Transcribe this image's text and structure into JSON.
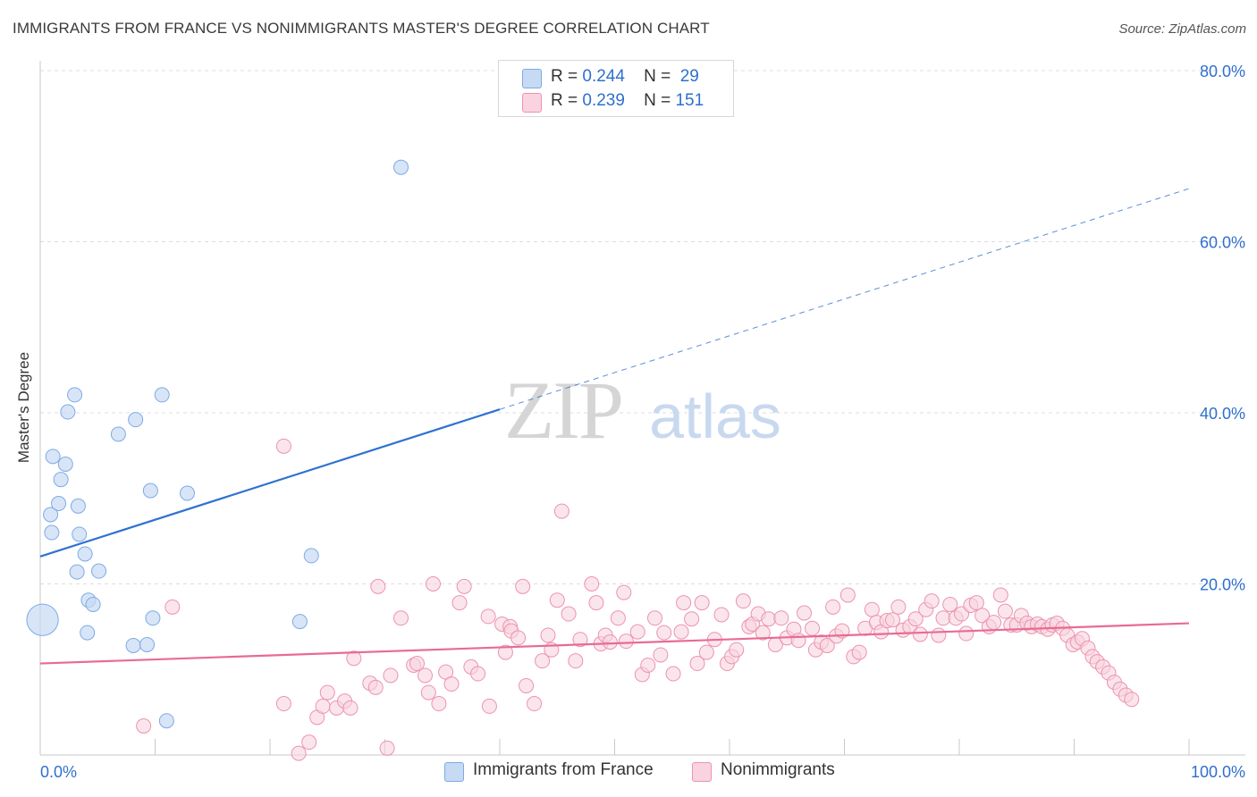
{
  "title": "IMMIGRANTS FROM FRANCE VS NONIMMIGRANTS MASTER'S DEGREE CORRELATION CHART",
  "source": "Source: ZipAtlas.com",
  "watermark": {
    "zip": "ZIP",
    "atlas": "atlas"
  },
  "legend": {
    "rows": [
      {
        "r_label": "R =",
        "r_value": "0.244",
        "n_label": "N =",
        "n_value": "29"
      },
      {
        "r_label": "R =",
        "r_value": "0.239",
        "n_label": "N =",
        "n_value": "151"
      }
    ]
  },
  "bottom_legend": [
    "Immigrants from France",
    "Nonimmigrants"
  ],
  "colors": {
    "blue_fill": "#c6daf4",
    "blue_stroke": "#7eaae6",
    "blue_line": "#2f72d0",
    "pink_fill": "#f9d3df",
    "pink_stroke": "#ec93ae",
    "pink_line": "#e86b94",
    "axis_text": "#2f6fce",
    "grid": "#dddddd"
  },
  "chart_data": {
    "type": "scatter",
    "title": "IMMIGRANTS FROM FRANCE VS NONIMMIGRANTS MASTER'S DEGREE CORRELATION CHART",
    "xlabel": "",
    "ylabel": "Master's Degree",
    "xlim": [
      0,
      100
    ],
    "ylim": [
      0,
      80
    ],
    "x_tick_labels": [
      "0.0%",
      "100.0%"
    ],
    "y_tick_labels": [
      "20.0%",
      "40.0%",
      "60.0%",
      "80.0%"
    ],
    "y_ticks": [
      20,
      40,
      60,
      80
    ],
    "grid": true,
    "series": [
      {
        "name": "Immigrants from France",
        "r": 0.244,
        "n": 29,
        "trend": {
          "x": [
            0,
            40
          ],
          "y": [
            23.2,
            40.4
          ],
          "dashed_to": [
            100,
            66.2
          ]
        },
        "points": [
          [
            0.2,
            15.8,
            2.2
          ],
          [
            1.0,
            26.0,
            1
          ],
          [
            0.9,
            28.1,
            1
          ],
          [
            1.1,
            34.9,
            1
          ],
          [
            2.2,
            34.0,
            1
          ],
          [
            1.8,
            32.2,
            1
          ],
          [
            1.6,
            29.4,
            1
          ],
          [
            2.4,
            40.1,
            1
          ],
          [
            3.0,
            42.1,
            1
          ],
          [
            3.3,
            29.1,
            1
          ],
          [
            3.4,
            25.8,
            1
          ],
          [
            3.2,
            21.4,
            1
          ],
          [
            3.9,
            23.5,
            1
          ],
          [
            5.1,
            21.5,
            1
          ],
          [
            4.2,
            18.1,
            1
          ],
          [
            4.6,
            17.6,
            1
          ],
          [
            4.1,
            14.3,
            1
          ],
          [
            6.8,
            37.5,
            1
          ],
          [
            8.3,
            39.2,
            1
          ],
          [
            9.6,
            30.9,
            1
          ],
          [
            10.6,
            42.1,
            1
          ],
          [
            12.8,
            30.6,
            1
          ],
          [
            8.1,
            12.8,
            1
          ],
          [
            9.3,
            12.9,
            1
          ],
          [
            9.8,
            16.0,
            1
          ],
          [
            11.0,
            4.0,
            1
          ],
          [
            22.6,
            15.6,
            1
          ],
          [
            23.6,
            23.3,
            1
          ],
          [
            31.4,
            68.7,
            1
          ]
        ]
      },
      {
        "name": "Nonimmigrants",
        "r": 0.239,
        "n": 151,
        "trend": {
          "x": [
            0,
            100
          ],
          "y": [
            10.7,
            15.4
          ]
        },
        "points": [
          [
            9.0,
            3.4
          ],
          [
            11.5,
            17.3
          ],
          [
            21.2,
            36.1
          ],
          [
            21.2,
            6.0
          ],
          [
            22.5,
            0.2
          ],
          [
            23.4,
            1.5
          ],
          [
            24.1,
            4.4
          ],
          [
            24.6,
            5.7
          ],
          [
            25.0,
            7.3
          ],
          [
            25.8,
            5.5
          ],
          [
            26.5,
            6.3
          ],
          [
            27.0,
            5.5
          ],
          [
            27.3,
            11.3
          ],
          [
            28.7,
            8.4
          ],
          [
            29.2,
            7.9
          ],
          [
            29.4,
            19.7
          ],
          [
            30.2,
            0.8
          ],
          [
            30.5,
            9.3
          ],
          [
            31.4,
            16.0
          ],
          [
            32.5,
            10.5
          ],
          [
            32.8,
            10.7
          ],
          [
            33.5,
            9.3
          ],
          [
            33.8,
            7.3
          ],
          [
            34.2,
            20.0
          ],
          [
            34.7,
            6.0
          ],
          [
            35.3,
            9.7
          ],
          [
            35.8,
            8.3
          ],
          [
            36.5,
            17.8
          ],
          [
            36.9,
            19.7
          ],
          [
            37.5,
            10.3
          ],
          [
            38.1,
            9.5
          ],
          [
            39.0,
            16.2
          ],
          [
            39.1,
            5.7
          ],
          [
            40.2,
            15.3
          ],
          [
            40.5,
            12.0
          ],
          [
            40.9,
            15.0
          ],
          [
            41.0,
            14.5
          ],
          [
            41.6,
            13.7
          ],
          [
            42.0,
            19.7
          ],
          [
            42.3,
            8.1
          ],
          [
            43.0,
            6.0
          ],
          [
            43.7,
            11.0
          ],
          [
            44.2,
            14.0
          ],
          [
            44.5,
            12.3
          ],
          [
            45.0,
            18.1
          ],
          [
            45.4,
            28.5
          ],
          [
            46.0,
            16.5
          ],
          [
            46.6,
            11.0
          ],
          [
            47.0,
            13.5
          ],
          [
            48.0,
            20.0
          ],
          [
            48.4,
            17.8
          ],
          [
            48.8,
            13.0
          ],
          [
            49.2,
            14.0
          ],
          [
            49.6,
            13.2
          ],
          [
            50.3,
            16.0
          ],
          [
            50.8,
            19.0
          ],
          [
            51.0,
            13.3
          ],
          [
            52.0,
            14.4
          ],
          [
            52.4,
            9.4
          ],
          [
            52.9,
            10.5
          ],
          [
            53.5,
            16.0
          ],
          [
            54.0,
            11.7
          ],
          [
            54.3,
            14.3
          ],
          [
            55.1,
            9.5
          ],
          [
            55.8,
            14.4
          ],
          [
            56.0,
            17.8
          ],
          [
            56.7,
            15.9
          ],
          [
            57.2,
            10.7
          ],
          [
            57.6,
            17.8
          ],
          [
            58.0,
            12.0
          ],
          [
            58.7,
            13.5
          ],
          [
            59.3,
            16.4
          ],
          [
            59.8,
            10.7
          ],
          [
            60.2,
            11.5
          ],
          [
            60.6,
            12.3
          ],
          [
            61.2,
            18.0
          ],
          [
            61.7,
            15.0
          ],
          [
            62.0,
            15.3
          ],
          [
            62.5,
            16.5
          ],
          [
            62.9,
            14.3
          ],
          [
            63.4,
            15.9
          ],
          [
            64.0,
            12.9
          ],
          [
            64.5,
            16.0
          ],
          [
            65.0,
            13.7
          ],
          [
            65.6,
            14.7
          ],
          [
            66.0,
            13.4
          ],
          [
            66.5,
            16.6
          ],
          [
            67.2,
            14.8
          ],
          [
            67.5,
            12.3
          ],
          [
            68.0,
            13.2
          ],
          [
            68.5,
            12.8
          ],
          [
            69.0,
            17.3
          ],
          [
            69.3,
            13.9
          ],
          [
            69.8,
            14.5
          ],
          [
            70.3,
            18.7
          ],
          [
            70.8,
            11.5
          ],
          [
            71.3,
            12.0
          ],
          [
            71.8,
            14.8
          ],
          [
            72.4,
            17.0
          ],
          [
            72.8,
            15.5
          ],
          [
            73.2,
            14.4
          ],
          [
            73.7,
            15.7
          ],
          [
            74.2,
            15.8
          ],
          [
            74.7,
            17.3
          ],
          [
            75.1,
            14.6
          ],
          [
            75.7,
            15.0
          ],
          [
            76.2,
            15.9
          ],
          [
            76.6,
            14.1
          ],
          [
            77.1,
            17.0
          ],
          [
            77.6,
            18.0
          ],
          [
            78.2,
            14.0
          ],
          [
            78.6,
            16.0
          ],
          [
            79.2,
            17.6
          ],
          [
            79.7,
            16.0
          ],
          [
            80.2,
            16.5
          ],
          [
            80.6,
            14.2
          ],
          [
            81.0,
            17.5
          ],
          [
            81.5,
            17.8
          ],
          [
            82.0,
            16.3
          ],
          [
            82.6,
            15.0
          ],
          [
            83.0,
            15.5
          ],
          [
            83.6,
            18.7
          ],
          [
            84.0,
            16.8
          ],
          [
            84.5,
            15.2
          ],
          [
            85.0,
            15.2
          ],
          [
            85.4,
            16.3
          ],
          [
            85.9,
            15.4
          ],
          [
            86.3,
            15.0
          ],
          [
            86.8,
            15.3
          ],
          [
            87.2,
            15.0
          ],
          [
            87.7,
            14.7
          ],
          [
            88.1,
            15.2
          ],
          [
            88.5,
            15.4
          ],
          [
            89.0,
            14.8
          ],
          [
            89.4,
            14.0
          ],
          [
            89.9,
            12.9
          ],
          [
            90.3,
            13.2
          ],
          [
            90.7,
            13.6
          ],
          [
            91.2,
            12.5
          ],
          [
            91.6,
            11.5
          ],
          [
            92.0,
            10.9
          ],
          [
            92.5,
            10.3
          ],
          [
            93.0,
            9.6
          ],
          [
            93.5,
            8.5
          ],
          [
            94.0,
            7.7
          ],
          [
            94.5,
            7.0
          ],
          [
            95.0,
            6.5
          ]
        ]
      }
    ]
  }
}
